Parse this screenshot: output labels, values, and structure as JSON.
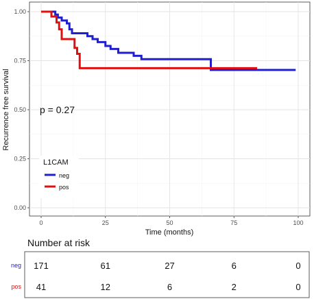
{
  "chart_data": {
    "type": "line",
    "subtype": "kaplan-meier",
    "xlabel": "Time (months)",
    "ylabel": "Recurrence free survival",
    "xlim": [
      0,
      100
    ],
    "ylim": [
      0,
      1
    ],
    "xticks": [
      0,
      25,
      50,
      75,
      100
    ],
    "yticks": [
      0.0,
      0.25,
      0.5,
      0.75,
      1.0
    ],
    "ytick_labels": [
      "0.00",
      "0.25",
      "0.50",
      "0.75",
      "1.00"
    ],
    "grid": true,
    "annotation": "p = 0.27",
    "legend": {
      "title": "L1CAM",
      "placement": "left-middle",
      "entries": [
        "neg",
        "pos"
      ]
    },
    "series": [
      {
        "name": "neg",
        "color": "#1f1fd0",
        "steps": [
          [
            0,
            1.0
          ],
          [
            5.5,
            1.0
          ],
          [
            5.5,
            0.985
          ],
          [
            6.5,
            0.985
          ],
          [
            6.5,
            0.97
          ],
          [
            8,
            0.97
          ],
          [
            8,
            0.955
          ],
          [
            10,
            0.955
          ],
          [
            10,
            0.94
          ],
          [
            11,
            0.94
          ],
          [
            11,
            0.91
          ],
          [
            12,
            0.91
          ],
          [
            12,
            0.89
          ],
          [
            18,
            0.89
          ],
          [
            18,
            0.875
          ],
          [
            20,
            0.875
          ],
          [
            20,
            0.86
          ],
          [
            22,
            0.86
          ],
          [
            22,
            0.845
          ],
          [
            25,
            0.845
          ],
          [
            25,
            0.825
          ],
          [
            27,
            0.825
          ],
          [
            27,
            0.81
          ],
          [
            30,
            0.81
          ],
          [
            30,
            0.79
          ],
          [
            36,
            0.79
          ],
          [
            36,
            0.775
          ],
          [
            39,
            0.775
          ],
          [
            39,
            0.758
          ],
          [
            66,
            0.758
          ],
          [
            66,
            0.703
          ],
          [
            99,
            0.703
          ]
        ]
      },
      {
        "name": "pos",
        "color": "#e01010",
        "steps": [
          [
            0,
            1.0
          ],
          [
            4,
            1.0
          ],
          [
            4,
            0.975
          ],
          [
            6,
            0.975
          ],
          [
            6,
            0.945
          ],
          [
            7,
            0.945
          ],
          [
            7,
            0.91
          ],
          [
            8,
            0.91
          ],
          [
            8,
            0.86
          ],
          [
            13,
            0.86
          ],
          [
            13,
            0.815
          ],
          [
            14,
            0.815
          ],
          [
            14,
            0.785
          ],
          [
            15,
            0.785
          ],
          [
            15,
            0.712
          ],
          [
            84,
            0.712
          ]
        ]
      }
    ]
  },
  "risk_table": {
    "title": "Number at risk",
    "times": [
      0,
      25,
      50,
      75,
      100
    ],
    "rows": [
      {
        "label": "neg",
        "color": "#1f1fd0",
        "values": [
          "171",
          "61",
          "27",
          "6",
          "0"
        ]
      },
      {
        "label": "pos",
        "color": "#e01010",
        "values": [
          "41",
          "12",
          "6",
          "2",
          "0"
        ]
      }
    ]
  }
}
